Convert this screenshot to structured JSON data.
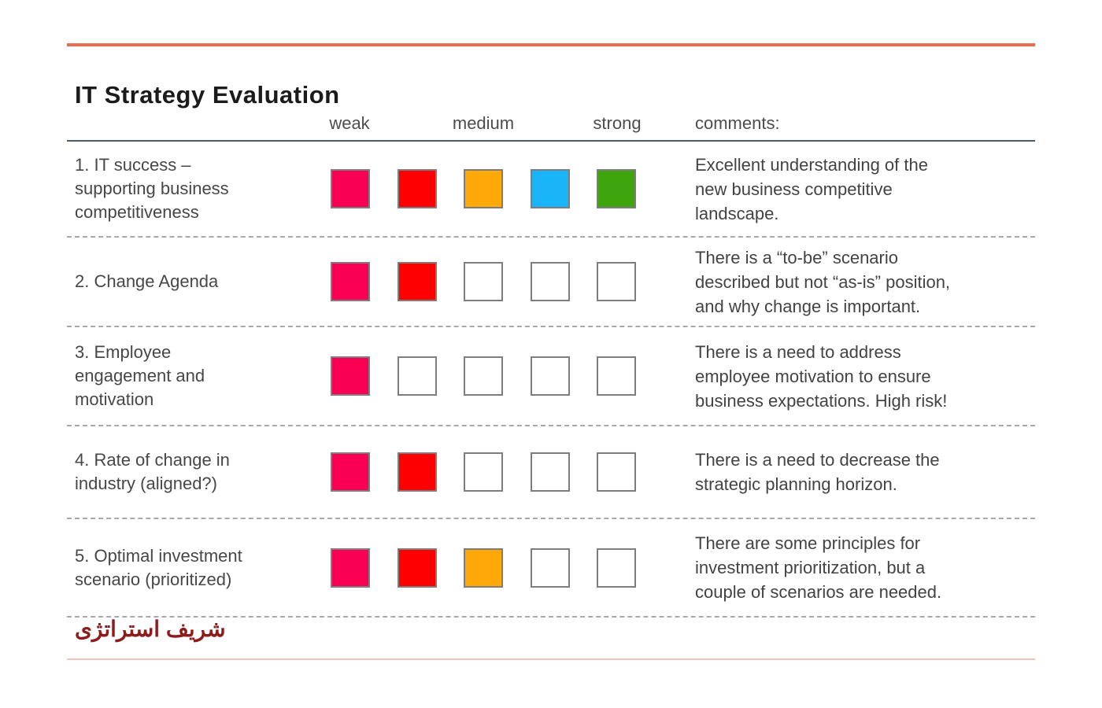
{
  "page": {
    "title": "IT Strategy Evaluation",
    "footer_brand": "شریف استراتژی"
  },
  "colors": {
    "accent_rule_top": "#E96B50",
    "accent_rule_bottom": "#F2C4B6",
    "header_rule": "#4e5b66",
    "footer_brand_text": "#8B1D1D",
    "scale_palette": [
      "#FA0055",
      "#FE0000",
      "#FFA807",
      "#1AB4F8",
      "#3EA50C"
    ]
  },
  "table": {
    "headers": {
      "weak": "weak",
      "medium": "medium",
      "strong": "strong",
      "comments": "comments:"
    },
    "rows": [
      {
        "label": "1. IT success –\nsupporting business\ncompetitiveness",
        "rating": 5,
        "cells": [
          "#FA0055",
          "#FE0000",
          "#FFA807",
          "#1AB4F8",
          "#3EA50C"
        ],
        "comment": "Excellent understanding of the\nnew business competitive\nlandscape."
      },
      {
        "label": "2. Change Agenda",
        "rating": 2,
        "cells": [
          "#FA0055",
          "#FE0000",
          null,
          null,
          null
        ],
        "comment": "There is a “to-be” scenario\ndescribed but not “as-is” position,\nand why change is important."
      },
      {
        "label": "3. Employee\nengagement and\nmotivation",
        "rating": 1,
        "cells": [
          "#FA0055",
          null,
          null,
          null,
          null
        ],
        "comment": "There is a need to address\nemployee motivation to ensure\nbusiness expectations. High risk!"
      },
      {
        "label": "4. Rate of change in\nindustry (aligned?)",
        "rating": 2,
        "cells": [
          "#FA0055",
          "#FE0000",
          null,
          null,
          null
        ],
        "comment": "There is a need to decrease the\nstrategic planning horizon."
      },
      {
        "label": "5. Optimal investment\nscenario (prioritized)",
        "rating": 3,
        "cells": [
          "#FA0055",
          "#FE0000",
          "#FFA807",
          null,
          null
        ],
        "comment": "There are some principles for\ninvestment prioritization, but a\ncouple of scenarios are needed."
      }
    ]
  }
}
